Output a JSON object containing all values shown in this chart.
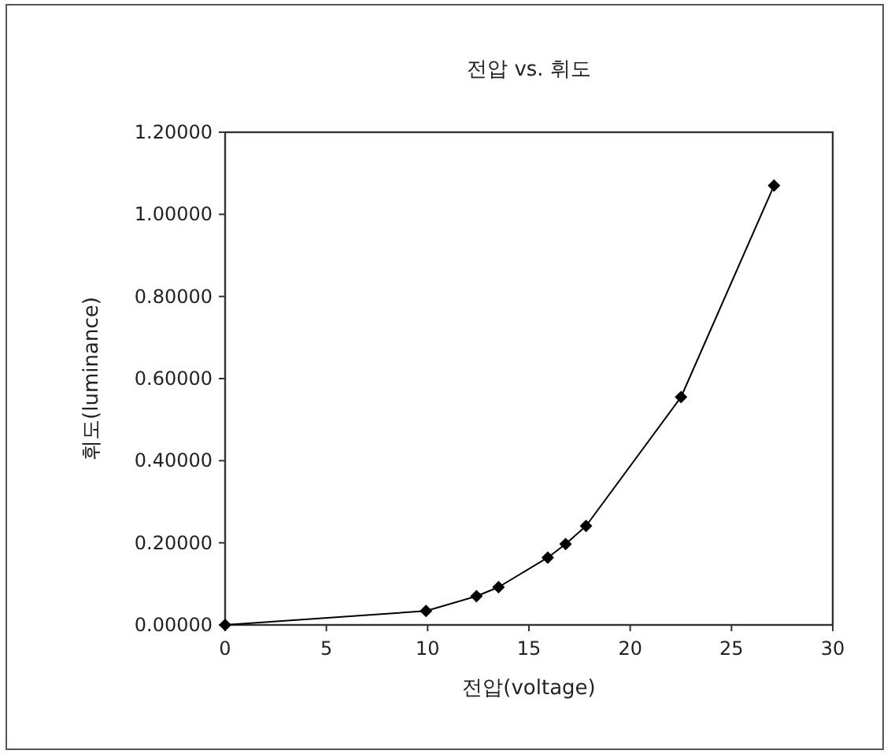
{
  "chart_data": {
    "type": "line",
    "title": "전압 vs. 휘도",
    "xlabel": "전압(voltage)",
    "ylabel": "휘도(luminance)",
    "series": [
      {
        "color": "#000000",
        "x": [
          0,
          9.92,
          12.41,
          13.5,
          15.93,
          16.81,
          17.82,
          22.51,
          27.1
        ],
        "values": [
          0,
          0.034,
          0.07,
          0.092,
          0.164,
          0.197,
          0.241,
          0.555,
          1.07
        ]
      }
    ],
    "xlim": [
      0,
      30
    ],
    "xticks": [
      0,
      5,
      10,
      15,
      20,
      25,
      30
    ],
    "ylim": [
      0,
      1.2
    ],
    "yticks": [
      {
        "value": 0,
        "label": "0.00000"
      },
      {
        "value": 0.2,
        "label": "0.20000"
      },
      {
        "value": 0.4,
        "label": "0.40000"
      },
      {
        "value": 0.6,
        "label": "0.60000"
      },
      {
        "value": 0.8,
        "label": "0.80000"
      },
      {
        "value": 1.0,
        "label": "1.00000"
      },
      {
        "value": 1.2,
        "label": "1.20000"
      }
    ],
    "marker": "diamond",
    "line_style": "solid",
    "grid": false
  }
}
